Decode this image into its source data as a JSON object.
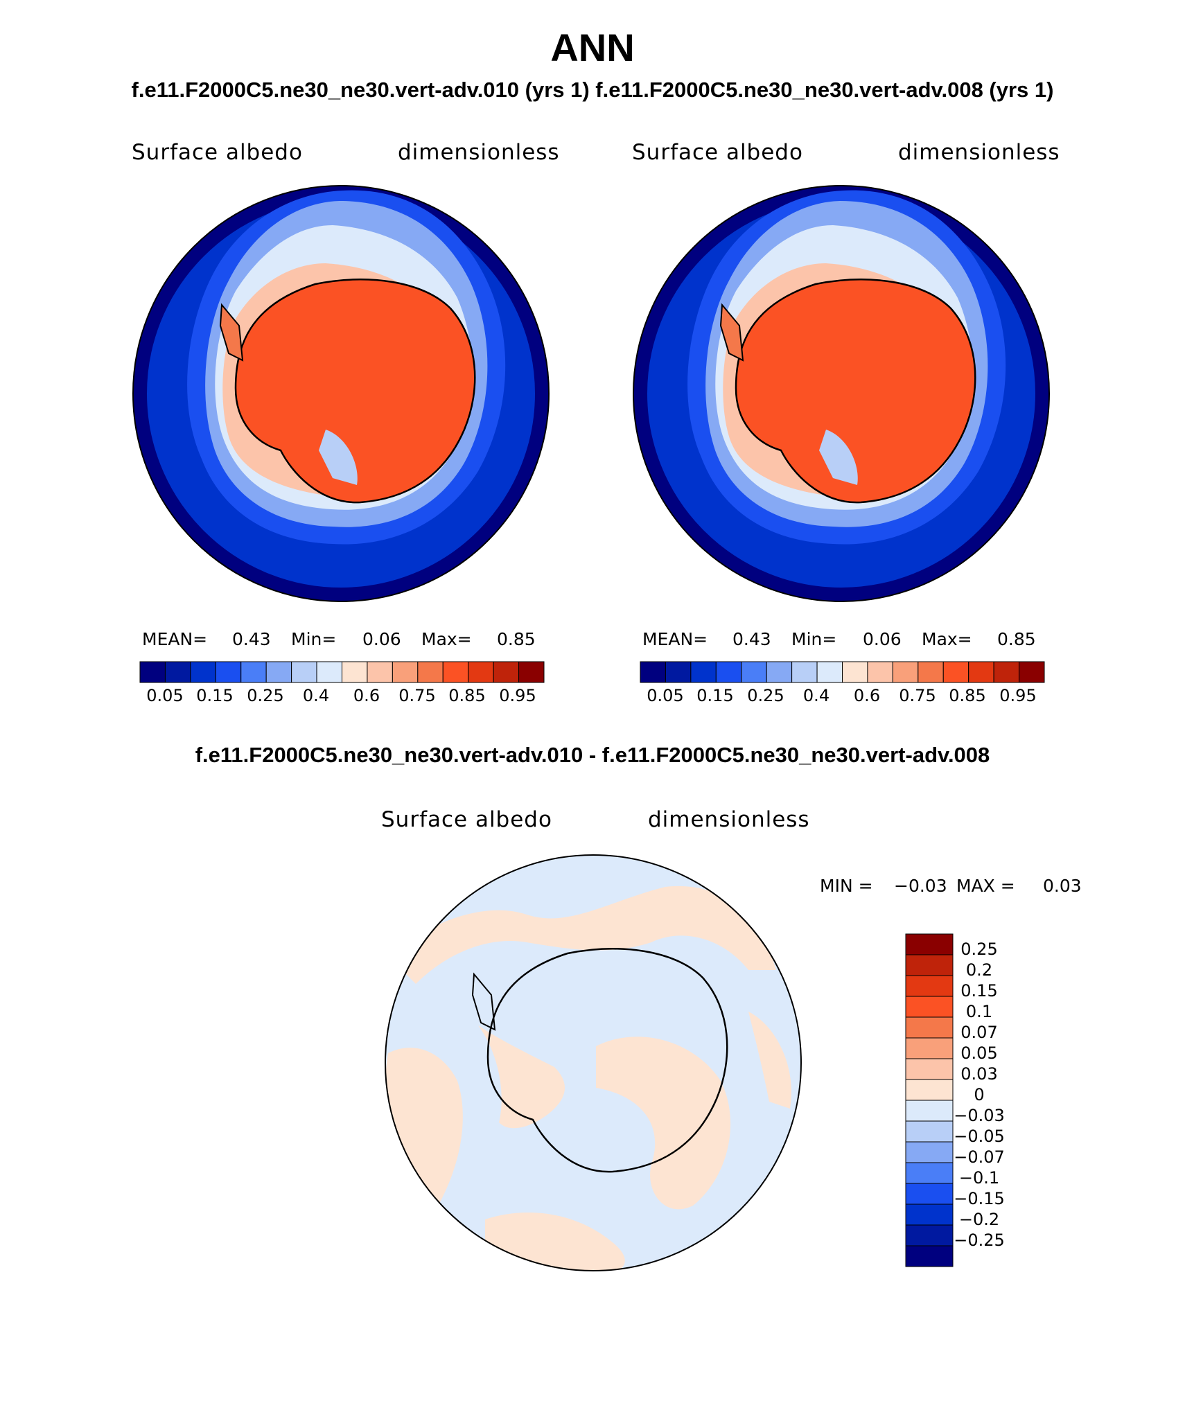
{
  "header": {
    "title": "ANN",
    "subtitle": "f.e11.F2000C5.ne30_ne30.vert-adv.010 (yrs 1) f.e11.F2000C5.ne30_ne30.vert-adv.008 (yrs 1)",
    "diff_title": "f.e11.F2000C5.ne30_ne30.vert-adv.010 - f.e11.F2000C5.ne30_ne30.vert-adv.008"
  },
  "panels": [
    {
      "variable": "Surface albedo",
      "units": "dimensionless",
      "stats": {
        "mean_label": "MEAN=",
        "mean": "0.43",
        "min_label": "Min=",
        "min": "0.06",
        "max_label": "Max=",
        "max": "0.85"
      }
    },
    {
      "variable": "Surface albedo",
      "units": "dimensionless",
      "stats": {
        "mean_label": "MEAN=",
        "mean": "0.43",
        "min_label": "Min=",
        "min": "0.06",
        "max_label": "Max=",
        "max": "0.85"
      }
    }
  ],
  "abs_colorbar": {
    "colors": [
      "#00007f",
      "#0019a0",
      "#0033cc",
      "#1a4ff0",
      "#4a7ef7",
      "#86a9f4",
      "#b8cff7",
      "#dceafb",
      "#fde4d2",
      "#fcc4aa",
      "#f9a07a",
      "#f4784a",
      "#fb5224",
      "#e33912",
      "#bf230a",
      "#8a0000"
    ],
    "tick_labels": [
      "0.05",
      "0.15",
      "0.25",
      "0.4",
      "0.6",
      "0.75",
      "0.85",
      "0.95"
    ]
  },
  "diff_panel": {
    "variable": "Surface albedo",
    "units": "dimensionless",
    "min_label": "MIN =",
    "min": "−0.03",
    "max_label": "MAX =",
    "max": "0.03"
  },
  "diff_colorbar": {
    "colors_top_to_bottom": [
      "#8a0000",
      "#bf230a",
      "#e33912",
      "#fb5224",
      "#f4784a",
      "#f9a07a",
      "#fcc4aa",
      "#fde4d2",
      "#dceafb",
      "#b8cff7",
      "#86a9f4",
      "#4a7ef7",
      "#1a4ff0",
      "#0033cc",
      "#0019a0",
      "#00007f"
    ],
    "tick_labels": [
      "0.25",
      "0.2",
      "0.15",
      "0.1",
      "0.07",
      "0.05",
      "0.03",
      "0",
      "−0.03",
      "−0.05",
      "−0.07",
      "−0.1",
      "−0.15",
      "−0.2",
      "−0.25"
    ]
  },
  "chart_data": {
    "type": "heatmap",
    "projection": "south polar stereographic",
    "title": "ANN",
    "maps": [
      {
        "name": "f.e11.F2000C5.ne30_ne30.vert-adv.010 (yrs 1)",
        "variable": "Surface albedo",
        "units": "dimensionless",
        "mean": 0.43,
        "min": 0.06,
        "max": 0.85,
        "levels": [
          0.05,
          0.1,
          0.15,
          0.2,
          0.25,
          0.3,
          0.4,
          0.5,
          0.6,
          0.7,
          0.75,
          0.8,
          0.85,
          0.9,
          0.95
        ]
      },
      {
        "name": "f.e11.F2000C5.ne30_ne30.vert-adv.008 (yrs 1)",
        "variable": "Surface albedo",
        "units": "dimensionless",
        "mean": 0.43,
        "min": 0.06,
        "max": 0.85,
        "levels": [
          0.05,
          0.1,
          0.15,
          0.2,
          0.25,
          0.3,
          0.4,
          0.5,
          0.6,
          0.7,
          0.75,
          0.8,
          0.85,
          0.9,
          0.95
        ]
      },
      {
        "name": "f.e11.F2000C5.ne30_ne30.vert-adv.010 - f.e11.F2000C5.ne30_ne30.vert-adv.008",
        "variable": "Surface albedo",
        "units": "dimensionless",
        "min": -0.03,
        "max": 0.03,
        "levels": [
          -0.25,
          -0.2,
          -0.15,
          -0.1,
          -0.07,
          -0.05,
          -0.03,
          0,
          0.03,
          0.05,
          0.07,
          0.1,
          0.15,
          0.2,
          0.25
        ]
      }
    ]
  }
}
